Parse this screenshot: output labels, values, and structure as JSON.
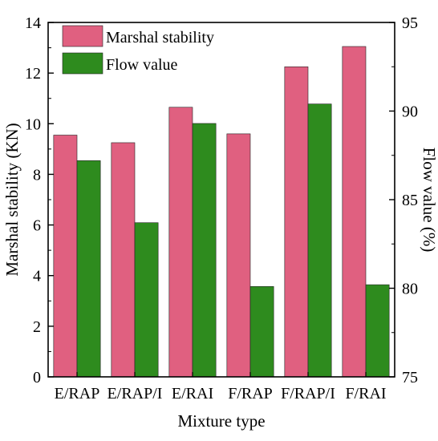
{
  "chart_data": {
    "type": "bar",
    "title": "",
    "xlabel": "Mixture type",
    "ylabel_left": "Marshal stability (KN)",
    "ylabel_right": "Flow value (%)",
    "categories": [
      "E/RAP",
      "E/RAP/I",
      "E/RAI",
      "F/RAP",
      "F/RAP/I",
      "F/RAI"
    ],
    "left_axis": {
      "min": 0,
      "max": 14,
      "ticks": [
        "0",
        "2",
        "4",
        "6",
        "8",
        "10",
        "12",
        "14"
      ]
    },
    "right_axis": {
      "min": 75,
      "max": 95,
      "ticks": [
        "75",
        "80",
        "85",
        "90",
        "95"
      ]
    },
    "series": [
      {
        "name": "Marshal stability",
        "axis": "left",
        "color": "#e06080",
        "values": [
          9.55,
          9.25,
          10.65,
          9.6,
          12.25,
          13.05
        ]
      },
      {
        "name": "Flow value",
        "axis": "right",
        "color": "#2e8b1e",
        "values": [
          87.2,
          83.7,
          89.3,
          80.1,
          90.4,
          80.2
        ]
      }
    ],
    "legend_position": "top-left",
    "grid": false
  }
}
